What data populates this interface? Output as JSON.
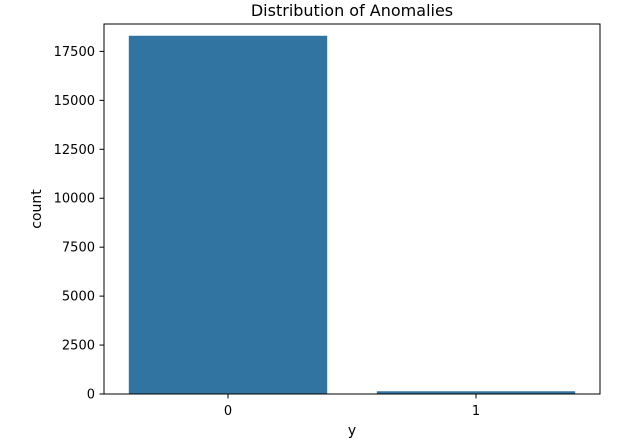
{
  "chart_data": {
    "type": "bar",
    "title": "Distribution of Anomalies",
    "xlabel": "y",
    "ylabel": "count",
    "categories": [
      "0",
      "1"
    ],
    "values": [
      18300,
      140
    ],
    "ylim": [
      0,
      18900
    ],
    "yticks": [
      0,
      2500,
      5000,
      7500,
      10000,
      12500,
      15000,
      17500
    ],
    "grid": false,
    "legend": "none",
    "bar_color": "#3274a1"
  }
}
